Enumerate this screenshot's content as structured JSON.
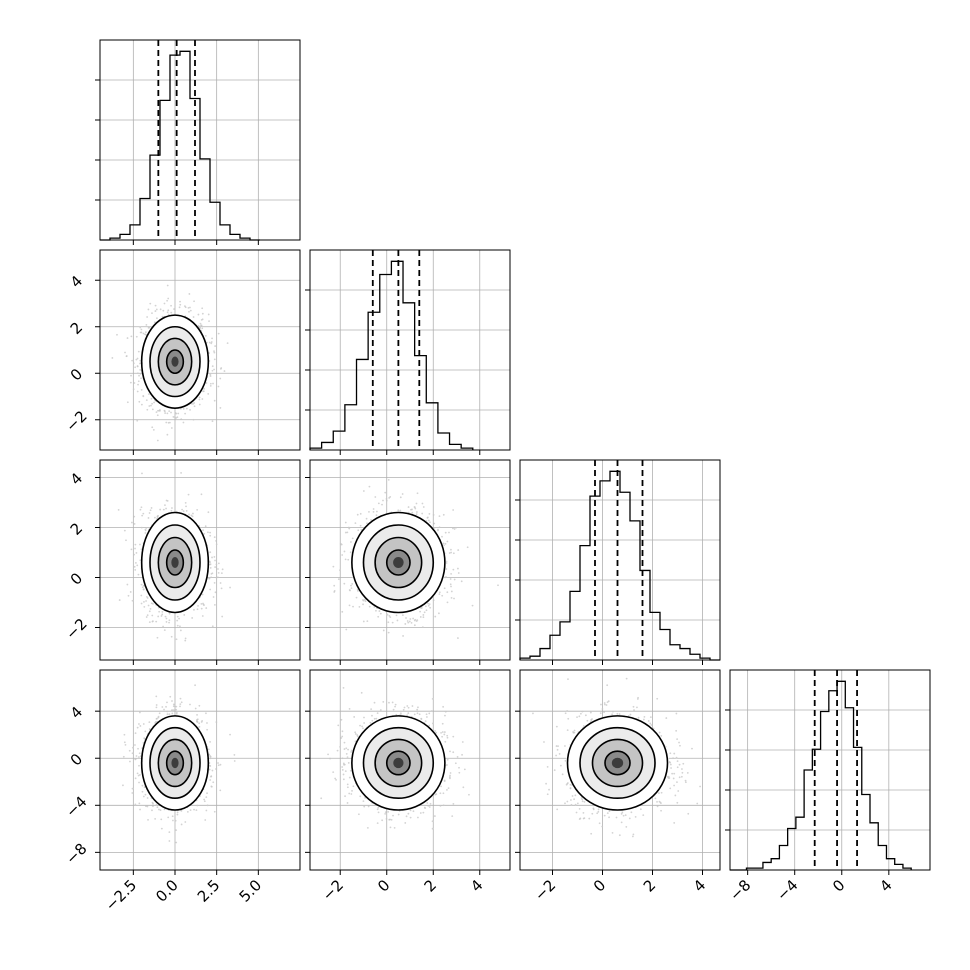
{
  "chart_data": {
    "type": "corner",
    "parameters": 4,
    "histograms": [
      {
        "variable_index": 0,
        "range": [
          -4.5,
          7.5
        ],
        "xticks": [
          -2.5,
          0.0,
          2.5,
          5.0
        ],
        "xtick_labels": [
          "−2.5",
          "0.0",
          "2.5",
          "5.0"
        ],
        "quantiles": [
          -1.0,
          0.1,
          1.2
        ],
        "bin_edges": [
          -4.5,
          -3.9,
          -3.3,
          -2.7,
          -2.1,
          -1.5,
          -0.9,
          -0.3,
          0.3,
          0.9,
          1.5,
          2.1,
          2.7,
          3.3,
          3.9,
          4.5,
          5.1
        ],
        "counts": [
          0,
          0.01,
          0.03,
          0.08,
          0.22,
          0.45,
          0.74,
          0.98,
          1.0,
          0.75,
          0.43,
          0.2,
          0.08,
          0.03,
          0.01,
          0
        ]
      },
      {
        "variable_index": 1,
        "range": [
          -3.3,
          5.3
        ],
        "xticks": [
          -2,
          0,
          2,
          4
        ],
        "xtick_labels": [
          "−2",
          "0",
          "2",
          "4"
        ],
        "quantiles": [
          -0.6,
          0.5,
          1.4
        ],
        "bin_edges": [
          -3.3,
          -2.8,
          -2.3,
          -1.8,
          -1.3,
          -0.8,
          -0.3,
          0.2,
          0.7,
          1.2,
          1.7,
          2.2,
          2.7,
          3.2,
          3.7
        ],
        "counts": [
          0.01,
          0.04,
          0.1,
          0.24,
          0.48,
          0.73,
          0.93,
          1.0,
          0.78,
          0.5,
          0.25,
          0.09,
          0.03,
          0.01
        ]
      },
      {
        "variable_index": 2,
        "range": [
          -3.3,
          4.7
        ],
        "xticks": [
          -2,
          0,
          2,
          4
        ],
        "xtick_labels": [
          "−2",
          "0",
          "2",
          "4"
        ],
        "quantiles": [
          -0.3,
          0.6,
          1.6
        ],
        "bin_edges": [
          -3.3,
          -2.9,
          -2.5,
          -2.1,
          -1.7,
          -1.3,
          -0.9,
          -0.5,
          -0.1,
          0.3,
          0.7,
          1.1,
          1.5,
          1.9,
          2.3,
          2.7,
          3.1,
          3.5,
          3.9,
          4.3,
          4.7
        ],
        "counts": [
          0.01,
          0.02,
          0.06,
          0.13,
          0.2,
          0.36,
          0.6,
          0.86,
          0.94,
          0.99,
          0.88,
          0.73,
          0.47,
          0.25,
          0.16,
          0.08,
          0.06,
          0.03,
          0.01,
          0.0
        ]
      },
      {
        "variable_index": 3,
        "range": [
          -9.5,
          7.5
        ],
        "xticks": [
          -8,
          -4,
          0,
          4
        ],
        "xtick_labels": [
          "−8",
          "−4",
          "0",
          "4"
        ],
        "quantiles": [
          -2.3,
          -0.4,
          1.3
        ],
        "bin_edges": [
          -9.5,
          -8.8,
          -8.1,
          -7.4,
          -6.7,
          -6.0,
          -5.3,
          -4.6,
          -3.9,
          -3.2,
          -2.5,
          -1.8,
          -1.1,
          -0.4,
          0.3,
          1.0,
          1.7,
          2.4,
          3.1,
          3.8,
          4.5,
          5.2,
          5.9
        ],
        "counts": [
          0,
          0,
          0.01,
          0.01,
          0.04,
          0.06,
          0.13,
          0.22,
          0.28,
          0.53,
          0.64,
          0.84,
          0.95,
          1.0,
          0.86,
          0.65,
          0.4,
          0.25,
          0.13,
          0.06,
          0.03,
          0.01
        ]
      }
    ],
    "panels_2d": [
      {
        "x": 0,
        "y": 1,
        "xrange": [
          -4.5,
          7.5
        ],
        "yrange": [
          -3.3,
          5.3
        ],
        "center": [
          0.0,
          0.5
        ],
        "sigma": [
          1.0,
          1.0
        ],
        "yticks": [
          -2,
          0,
          2,
          4
        ],
        "ytick_labels": [
          "−2",
          "0",
          "2",
          "4"
        ]
      },
      {
        "x": 0,
        "y": 2,
        "xrange": [
          -4.5,
          7.5
        ],
        "yrange": [
          -3.3,
          4.7
        ],
        "center": [
          0.0,
          0.6
        ],
        "sigma": [
          1.0,
          1.0
        ],
        "yticks": [
          -2,
          0,
          2,
          4
        ],
        "ytick_labels": [
          "−2",
          "0",
          "2",
          "4"
        ]
      },
      {
        "x": 1,
        "y": 2,
        "xrange": [
          -3.3,
          5.3
        ],
        "yrange": [
          -3.3,
          4.7
        ],
        "center": [
          0.5,
          0.6
        ],
        "sigma": [
          1.0,
          1.0
        ],
        "yticks": [],
        "ytick_labels": []
      },
      {
        "x": 0,
        "y": 3,
        "xrange": [
          -4.5,
          7.5
        ],
        "yrange": [
          -9.5,
          7.5
        ],
        "center": [
          0.0,
          -0.4
        ],
        "sigma": [
          1.0,
          2.0
        ],
        "yticks": [
          -8,
          -4,
          0,
          4
        ],
        "ytick_labels": [
          "−8",
          "−4",
          "0",
          "4"
        ]
      },
      {
        "x": 1,
        "y": 3,
        "xrange": [
          -3.3,
          5.3
        ],
        "yrange": [
          -9.5,
          7.5
        ],
        "center": [
          0.5,
          -0.4
        ],
        "sigma": [
          1.0,
          2.0
        ],
        "yticks": [],
        "ytick_labels": []
      },
      {
        "x": 2,
        "y": 3,
        "xrange": [
          -3.3,
          4.7
        ],
        "yrange": [
          -9.5,
          7.5
        ],
        "center": [
          0.6,
          -0.4
        ],
        "sigma": [
          1.0,
          2.0
        ],
        "yticks": [],
        "ytick_labels": []
      }
    ],
    "contour_levels_sigma": [
      0.5,
      1.0,
      1.5,
      2.0
    ],
    "grid": true,
    "colors": {
      "lines": "#000000",
      "grid": "#b0b0b0",
      "points": "#c8c8c8",
      "density_max": "#3c3c3c"
    }
  }
}
